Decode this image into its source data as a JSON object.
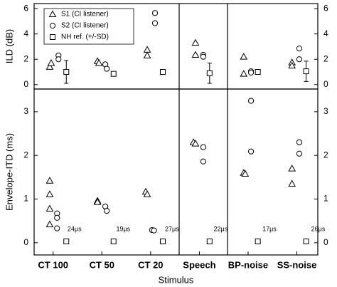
{
  "chart_data": [
    {
      "type": "scatter",
      "ylabel": "ILD (dB)",
      "ylim": [
        -0.35,
        6.4
      ],
      "yticks": [
        0,
        2,
        4,
        6
      ],
      "series": [
        {
          "name": "S1 (CI listener)",
          "marker": "triangle",
          "color": "#000000",
          "x": [
            -0.07,
            -0.04,
            0.91,
            0.94,
            1.93,
            1.93,
            2.92,
            2.92,
            3.91,
            3.91,
            4.9,
            4.9
          ],
          "values": [
            1.4,
            1.7,
            1.85,
            1.7,
            2.75,
            2.3,
            3.3,
            2.35,
            2.2,
            0.85,
            1.75,
            1.5
          ]
        },
        {
          "name": "S2 (CI listener)",
          "marker": "circle",
          "color": "#000000",
          "x": [
            0.11,
            0.11,
            1.07,
            1.1,
            2.09,
            2.09,
            3.08,
            3.08,
            4.06,
            4.06,
            5.05,
            5.05
          ],
          "values": [
            2.3,
            2.0,
            1.6,
            1.25,
            5.65,
            4.85,
            2.35,
            2.2,
            1.05,
            0.95,
            2.85,
            2.0
          ]
        },
        {
          "name": "NH ref. (+/-SD)",
          "marker": "square",
          "color": "#000000",
          "x": [
            0.27,
            1.24,
            2.25,
            3.21,
            4.2,
            5.19
          ],
          "values": [
            1.0,
            0.85,
            1.0,
            0.9,
            1.0,
            1.05
          ],
          "errors": [
            0.9,
            null,
            null,
            0.8,
            null,
            0.8
          ]
        }
      ]
    },
    {
      "type": "scatter",
      "ylabel": "Envelope-ITD (ms)",
      "xlabel": "Stimulus",
      "xlim": [
        -0.39,
        5.43
      ],
      "xticks": [
        {
          "value": 0,
          "label": "CT 100"
        },
        {
          "value": 1,
          "label": "CT 50"
        },
        {
          "value": 2,
          "label": "CT 20"
        },
        {
          "value": 3,
          "label": "Speech"
        },
        {
          "value": 4,
          "label": "BP-noise"
        },
        {
          "value": 5,
          "label": "SS-noise"
        }
      ],
      "ylim": [
        -0.28,
        3.52
      ],
      "yticks": [
        0,
        1,
        2,
        3
      ],
      "annotations": [
        "24μs",
        "19μs",
        "27μs",
        "22μs",
        "17μs",
        "26μs"
      ],
      "series": [
        {
          "marker": "triangle",
          "color": "#000000",
          "x": [
            -0.07,
            -0.07,
            -0.07,
            -0.07,
            0.91,
            0.91,
            1.9,
            1.93,
            2.88,
            2.92,
            3.91,
            3.94,
            4.9,
            4.9
          ],
          "values": [
            1.42,
            1.11,
            0.78,
            0.42,
            0.96,
            0.93,
            1.17,
            1.11,
            2.3,
            2.27,
            1.6,
            1.58,
            1.7,
            1.35
          ]
        },
        {
          "marker": "circle",
          "color": "#000000",
          "x": [
            0.08,
            0.08,
            0.08,
            1.07,
            1.1,
            2.03,
            2.07,
            3.08,
            3.08,
            4.06,
            4.06,
            5.05,
            5.05
          ],
          "values": [
            0.67,
            0.57,
            0.33,
            0.83,
            0.73,
            0.29,
            0.28,
            2.19,
            1.86,
            3.25,
            2.09,
            2.04,
            2.3
          ]
        },
        {
          "marker": "square",
          "color": "#000000",
          "x": [
            0.27,
            1.24,
            2.25,
            3.21,
            4.2,
            5.19
          ],
          "values": [
            0.03,
            0.03,
            0.03,
            0.03,
            0.03,
            0.03
          ]
        }
      ]
    }
  ]
}
